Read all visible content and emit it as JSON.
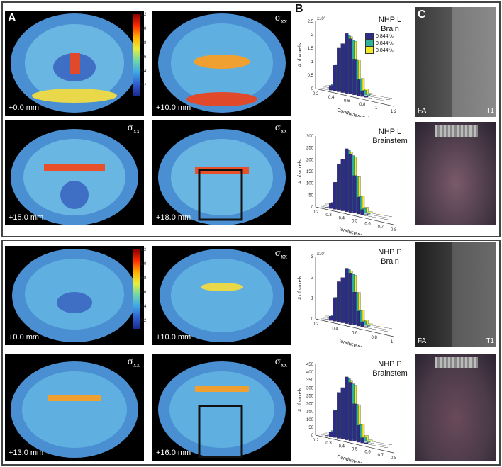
{
  "panels": {
    "a_label": "A",
    "b_label": "B",
    "c_label": "C"
  },
  "colorbar_ticks": [
    "1.2",
    "1.0",
    "0.8",
    "0.6",
    "0.4",
    "0.2"
  ],
  "top": {
    "slices": [
      {
        "mm": "+0.0 mm",
        "sigma": ""
      },
      {
        "mm": "+10.0 mm",
        "sigma": "σ",
        "sub": "xx"
      },
      {
        "mm": "+15.0 mm",
        "sigma": "σ",
        "sub": "xx"
      },
      {
        "mm": "+18.0 mm",
        "sigma": "σ",
        "sub": "xx"
      }
    ],
    "hist1": {
      "title1": "NHP L",
      "title2": "Brain",
      "ylabel": "# of voxels",
      "xlabel": "Conductance (S/m)",
      "mult": "x10",
      "mult_exp": "4",
      "yticks": [
        "2.5",
        "2",
        "1.5",
        "1",
        "0.5",
        "0"
      ],
      "xticks": [
        "0.2",
        "0.4",
        "0.6",
        "0.8",
        "1",
        "1.2"
      ]
    },
    "hist2": {
      "title1": "NHP L",
      "title2": "Brainstem",
      "ylabel": "# of voxels",
      "xlabel": "Conductance (S/m)",
      "yticks": [
        "300",
        "250",
        "200",
        "150",
        "100",
        "50",
        "0"
      ],
      "xticks": [
        "0.2",
        "0.3",
        "0.4",
        "0.5",
        "0.6",
        "0.7",
        "0.8"
      ]
    },
    "legend": [
      {
        "label": "0.844*λ₁",
        "color": "#2e2c86"
      },
      {
        "label": "0.844*λ₂",
        "color": "#2fb39a"
      },
      {
        "label": "0.844*λ₃",
        "color": "#f2ea2a"
      }
    ],
    "c_labels": {
      "fa": "FA",
      "t1": "T1"
    }
  },
  "bottom": {
    "slices": [
      {
        "mm": "+0.0 mm",
        "sigma": ""
      },
      {
        "mm": "+10.0 mm",
        "sigma": "σ",
        "sub": "xx"
      },
      {
        "mm": "+13.0 mm",
        "sigma": "σ",
        "sub": "xx"
      },
      {
        "mm": "+16.0 mm",
        "sigma": "σ",
        "sub": "xx"
      }
    ],
    "hist1": {
      "title1": "NHP P",
      "title2": "Brain",
      "ylabel": "# of voxels",
      "xlabel": "Conductance (S/m)",
      "mult": "x10",
      "mult_exp": "4",
      "yticks": [
        "3",
        "2",
        "1",
        "0"
      ],
      "xticks": [
        "0.2",
        "0.4",
        "0.6",
        "0.8",
        "1"
      ]
    },
    "hist2": {
      "title1": "NHP P",
      "title2": "Brainstem",
      "ylabel": "# of voxels",
      "xlabel": "Conductance (S/m)",
      "yticks": [
        "450",
        "400",
        "350",
        "300",
        "250",
        "200",
        "150",
        "100",
        "50",
        "0"
      ],
      "xticks": [
        "0.2",
        "0.3",
        "0.4",
        "0.5",
        "0.6",
        "0.7",
        "0.8"
      ]
    },
    "c_labels": {
      "fa": "FA",
      "t1": "T1"
    }
  }
}
